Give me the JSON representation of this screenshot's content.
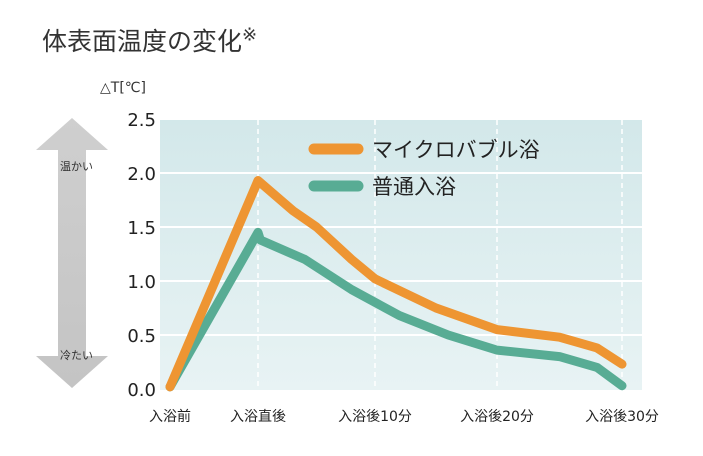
{
  "title": "体表面温度の変化",
  "title_mark": "※",
  "arrow": {
    "top": "温かい",
    "bottom": "冷たい"
  },
  "chart_data": {
    "type": "line",
    "title": "体表面温度の変化",
    "ylabel": "△T[℃]",
    "xlabel": "",
    "ylim": [
      0,
      2.5
    ],
    "yticks": [
      "0.0",
      "0.5",
      "1.0",
      "1.5",
      "2.0",
      "2.5"
    ],
    "xticks": [
      {
        "label": "入浴前",
        "x": -8
      },
      {
        "label": "入浴直後",
        "x": 0
      },
      {
        "label": "入浴後10分",
        "x": 10
      },
      {
        "label": "入浴後20分",
        "x": 20
      },
      {
        "label": "入浴後30分",
        "x": 30
      }
    ],
    "legend_position": "top-center",
    "grid": true,
    "series": [
      {
        "name": "マイクロバブル浴",
        "color": "#ee9532",
        "points": [
          [
            -8,
            0.02
          ],
          [
            0,
            1.93
          ],
          [
            3,
            1.65
          ],
          [
            5,
            1.5
          ],
          [
            8,
            1.2
          ],
          [
            10,
            1.02
          ],
          [
            15,
            0.75
          ],
          [
            20,
            0.55
          ],
          [
            25,
            0.48
          ],
          [
            28,
            0.38
          ],
          [
            30,
            0.23
          ]
        ]
      },
      {
        "name": "普通入浴",
        "color": "#58ac94",
        "points": [
          [
            -8,
            0.02
          ],
          [
            0,
            1.45
          ],
          [
            0.2,
            1.38
          ],
          [
            4,
            1.2
          ],
          [
            8,
            0.92
          ],
          [
            12,
            0.68
          ],
          [
            16,
            0.5
          ],
          [
            20,
            0.36
          ],
          [
            25,
            0.3
          ],
          [
            28,
            0.2
          ],
          [
            30,
            0.03
          ]
        ]
      }
    ]
  }
}
